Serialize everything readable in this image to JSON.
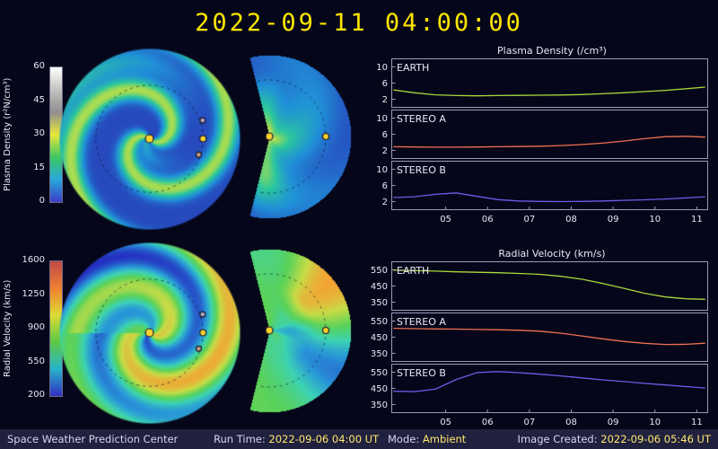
{
  "title": "2022-09-11 04:00:00",
  "statusbar": {
    "source": "Space Weather Prediction Center",
    "run_time_label": "Run Time:",
    "run_time_value": "2022-09-06 04:00 UT",
    "mode_label": "Mode:",
    "mode_value": "Ambient",
    "created_label": "Image Created:",
    "created_value": "2022-09-06 05:46 UT"
  },
  "colors": {
    "background": "#06061a",
    "title": "#ffe600",
    "statusbar_bg": "#20203f",
    "statusbar_text": "#d6d6ea",
    "statusbar_value": "#ffe96a",
    "axis_border": "#9a9ab8",
    "axis_text": "#e8e8f4",
    "earth": "#a8d83c",
    "stereo_a": "#ef7152",
    "stereo_b": "#6e5ce8",
    "sun": "#ffd22e",
    "marker_a": "#b2a8c4",
    "marker_b": "#c89d85"
  },
  "colorbars": [
    {
      "label": "Plasma Density (r²N/cm³)",
      "ticks": [
        "60",
        "45",
        "30",
        "15",
        "0"
      ],
      "gradient": [
        "#ffffff",
        "#c2c2c2",
        "#8f8f8f",
        "#e8e838",
        "#3cc862",
        "#28a8dc",
        "#3c3cc8"
      ]
    },
    {
      "label": "Radial Velocity (km/s)",
      "ticks": [
        "1600",
        "1250",
        "900",
        "550",
        "200"
      ],
      "gradient": [
        "#c04848",
        "#f08030",
        "#dcdc34",
        "#5cc844",
        "#28b4cc",
        "#3030c4"
      ]
    }
  ],
  "chart_data": [
    {
      "type": "line",
      "title": "Plasma Density (/cm³)",
      "xlim": [
        3.7,
        11.25
      ],
      "xticks": [
        5,
        6,
        7,
        8,
        9,
        10,
        11
      ],
      "xtick_labels": [
        "05",
        "06",
        "07",
        "08",
        "09",
        "10",
        "11"
      ],
      "x": [
        3.75,
        4.25,
        4.75,
        5.25,
        5.75,
        6.25,
        6.75,
        7.25,
        7.75,
        8.25,
        8.75,
        9.25,
        9.75,
        10.25,
        10.75,
        11.2
      ],
      "panels": [
        {
          "label": "EARTH",
          "series": "earth",
          "ylim": [
            0,
            12
          ],
          "yticks": [
            2,
            6,
            10
          ],
          "y": [
            4.3,
            3.6,
            3.1,
            2.9,
            2.85,
            2.9,
            2.95,
            3.0,
            3.05,
            3.15,
            3.35,
            3.6,
            3.9,
            4.2,
            4.6,
            5.0
          ]
        },
        {
          "label": "STEREO A",
          "series": "stereo_a",
          "ylim": [
            0,
            12
          ],
          "yticks": [
            2,
            6,
            10
          ],
          "y": [
            2.9,
            2.85,
            2.8,
            2.8,
            2.85,
            2.9,
            2.95,
            3.05,
            3.2,
            3.45,
            3.8,
            4.3,
            4.9,
            5.4,
            5.5,
            5.3
          ]
        },
        {
          "label": "STEREO B",
          "series": "stereo_b",
          "ylim": [
            0,
            12
          ],
          "yticks": [
            2,
            6,
            10
          ],
          "y": [
            3.0,
            3.2,
            3.8,
            4.15,
            3.3,
            2.5,
            2.15,
            2.05,
            2.0,
            2.05,
            2.15,
            2.3,
            2.45,
            2.65,
            2.9,
            3.2
          ]
        }
      ]
    },
    {
      "type": "line",
      "title": "Radial Velocity (km/s)",
      "xlim": [
        3.7,
        11.25
      ],
      "xticks": [
        5,
        6,
        7,
        8,
        9,
        10,
        11
      ],
      "xtick_labels": [
        "05",
        "06",
        "07",
        "08",
        "09",
        "10",
        "11"
      ],
      "x": [
        3.75,
        4.25,
        4.75,
        5.25,
        5.75,
        6.25,
        6.75,
        7.25,
        7.75,
        8.25,
        8.75,
        9.25,
        9.75,
        10.25,
        10.75,
        11.2
      ],
      "panels": [
        {
          "label": "EARTH",
          "series": "earth",
          "ylim": [
            300,
            600
          ],
          "yticks": [
            350,
            450,
            550
          ],
          "y": [
            548,
            545,
            542,
            538,
            535,
            532,
            528,
            522,
            510,
            492,
            466,
            436,
            405,
            382,
            371,
            368
          ]
        },
        {
          "label": "STEREO A",
          "series": "stereo_a",
          "ylim": [
            300,
            600
          ],
          "yticks": [
            350,
            450,
            550
          ],
          "y": [
            505,
            503,
            501,
            500,
            498,
            496,
            493,
            487,
            475,
            458,
            440,
            424,
            412,
            405,
            406,
            413
          ]
        },
        {
          "label": "STEREO B",
          "series": "stereo_b",
          "ylim": [
            300,
            600
          ],
          "yticks": [
            350,
            450,
            550
          ],
          "y": [
            432,
            430,
            445,
            505,
            548,
            554,
            547,
            538,
            527,
            515,
            503,
            492,
            481,
            471,
            461,
            452
          ]
        }
      ]
    }
  ],
  "heliosphere": {
    "density_map": [
      [
        0.0,
        "#2830b4"
      ],
      [
        0.22,
        "#2090d8"
      ],
      [
        0.42,
        "#2cc89c"
      ],
      [
        0.58,
        "#a8dc50"
      ],
      [
        0.72,
        "#ecec9c"
      ],
      [
        0.88,
        "#ffffff"
      ]
    ],
    "velocity_map": [
      [
        0.0,
        "#2323be"
      ],
      [
        0.2,
        "#2896d8"
      ],
      [
        0.35,
        "#3cd2b4"
      ],
      [
        0.5,
        "#5ad25a"
      ],
      [
        0.65,
        "#c8dc46"
      ],
      [
        0.8,
        "#f5a032"
      ],
      [
        1.0,
        "#e05028"
      ]
    ]
  }
}
